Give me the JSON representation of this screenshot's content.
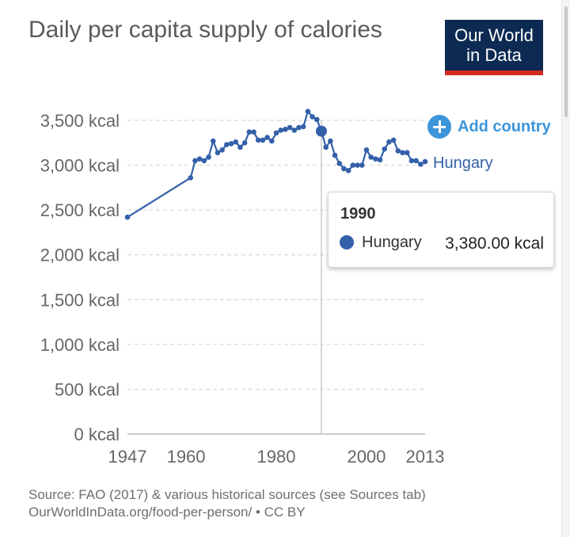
{
  "header": {
    "title": "Daily per capita supply of calories",
    "logo_line1": "Our World",
    "logo_line2": "in Data"
  },
  "controls": {
    "add_country_label": "Add country",
    "add_country_icon": "plus-circle-icon"
  },
  "colors": {
    "series": "#3360a9",
    "accent": "#3c95d9",
    "logo_bg": "#0d2a52",
    "logo_bar": "#d42b21"
  },
  "chart_data": {
    "type": "line",
    "title": "Daily per capita supply of calories",
    "xlabel": "",
    "ylabel": "",
    "xlim": [
      1947,
      2013
    ],
    "ylim": [
      0,
      3500
    ],
    "x_ticks": [
      1947,
      1960,
      1980,
      2000,
      2013
    ],
    "y_ticks": [
      0,
      500,
      1000,
      1500,
      2000,
      2500,
      3000,
      3500
    ],
    "y_tick_labels": [
      "0 kcal",
      "500 kcal",
      "1,000 kcal",
      "1,500 kcal",
      "2,000 kcal",
      "2,500 kcal",
      "3,000 kcal",
      "3,500 kcal"
    ],
    "grid": "horizontal dashed",
    "series": [
      {
        "name": "Hungary",
        "points": [
          [
            1947,
            2420
          ],
          [
            1961,
            2860
          ],
          [
            1962,
            3050
          ],
          [
            1963,
            3070
          ],
          [
            1964,
            3050
          ],
          [
            1965,
            3090
          ],
          [
            1966,
            3270
          ],
          [
            1967,
            3140
          ],
          [
            1968,
            3170
          ],
          [
            1969,
            3230
          ],
          [
            1970,
            3240
          ],
          [
            1971,
            3260
          ],
          [
            1972,
            3200
          ],
          [
            1973,
            3250
          ],
          [
            1974,
            3370
          ],
          [
            1975,
            3370
          ],
          [
            1976,
            3280
          ],
          [
            1977,
            3280
          ],
          [
            1978,
            3310
          ],
          [
            1979,
            3270
          ],
          [
            1980,
            3360
          ],
          [
            1981,
            3390
          ],
          [
            1982,
            3400
          ],
          [
            1983,
            3420
          ],
          [
            1984,
            3390
          ],
          [
            1985,
            3420
          ],
          [
            1986,
            3430
          ],
          [
            1987,
            3600
          ],
          [
            1988,
            3540
          ],
          [
            1989,
            3510
          ],
          [
            1990,
            3380
          ],
          [
            1991,
            3200
          ],
          [
            1992,
            3270
          ],
          [
            1993,
            3110
          ],
          [
            1994,
            3020
          ],
          [
            1995,
            2960
          ],
          [
            1996,
            2940
          ],
          [
            1997,
            3000
          ],
          [
            1998,
            3000
          ],
          [
            1999,
            3000
          ],
          [
            2000,
            3170
          ],
          [
            2001,
            3090
          ],
          [
            2002,
            3070
          ],
          [
            2003,
            3060
          ],
          [
            2004,
            3180
          ],
          [
            2005,
            3260
          ],
          [
            2006,
            3280
          ],
          [
            2007,
            3160
          ],
          [
            2008,
            3140
          ],
          [
            2009,
            3140
          ],
          [
            2010,
            3050
          ],
          [
            2011,
            3050
          ],
          [
            2012,
            3010
          ],
          [
            2013,
            3040
          ]
        ]
      }
    ],
    "series_label": "Hungary",
    "highlight": {
      "year": "1990",
      "x": 1990,
      "country": "Hungary",
      "value": 3380,
      "value_text": "3,380.00 kcal"
    }
  },
  "footer": {
    "source_line1": "Source: FAO (2017) & various historical sources (see Sources tab)",
    "source_line2": "OurWorldInData.org/food-per-person/ • CC BY"
  }
}
